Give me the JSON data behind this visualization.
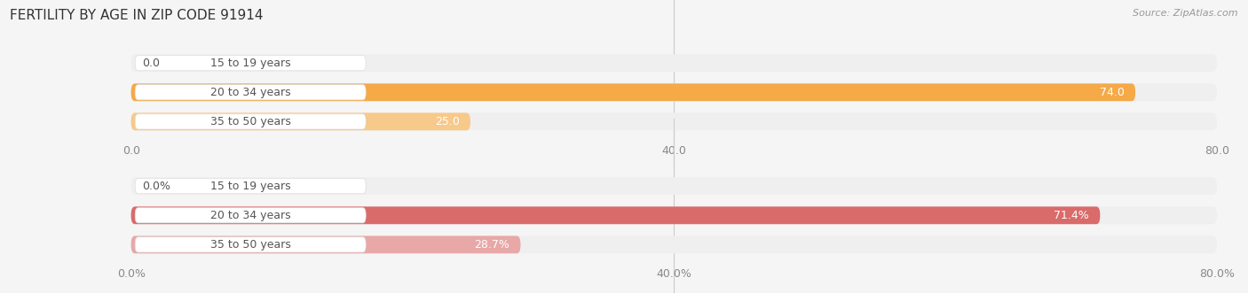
{
  "title": "FERTILITY BY AGE IN ZIP CODE 91914",
  "source": "Source: ZipAtlas.com",
  "chart1": {
    "categories": [
      "15 to 19 years",
      "20 to 34 years",
      "35 to 50 years"
    ],
    "values": [
      0.0,
      74.0,
      25.0
    ],
    "xlim": [
      0,
      80
    ],
    "xticks": [
      0.0,
      40.0,
      80.0
    ],
    "xtick_labels": [
      "0.0",
      "40.0",
      "80.0"
    ],
    "bar_color": "#F5A947",
    "bar_color_light": "#F7C98A",
    "bar_bg_color": "#EFEFEF",
    "label_bg_color": "#FFFFFF",
    "text_color": "#555555"
  },
  "chart2": {
    "categories": [
      "15 to 19 years",
      "20 to 34 years",
      "35 to 50 years"
    ],
    "values": [
      0.0,
      71.4,
      28.7
    ],
    "xlim": [
      0,
      80
    ],
    "xticks": [
      0.0,
      40.0,
      80.0
    ],
    "xtick_labels": [
      "0.0%",
      "40.0%",
      "80.0%"
    ],
    "bar_color": "#D96B6B",
    "bar_color_light": "#E8A8A8",
    "bar_bg_color": "#EFEFEF",
    "label_bg_color": "#FFFFFF",
    "text_color": "#555555"
  },
  "fig_bg_color": "#F5F5F5",
  "bar_height": 0.6,
  "label_fontsize": 9,
  "tick_fontsize": 9,
  "title_fontsize": 11,
  "cat_fontsize": 9,
  "val_fontsize": 9
}
